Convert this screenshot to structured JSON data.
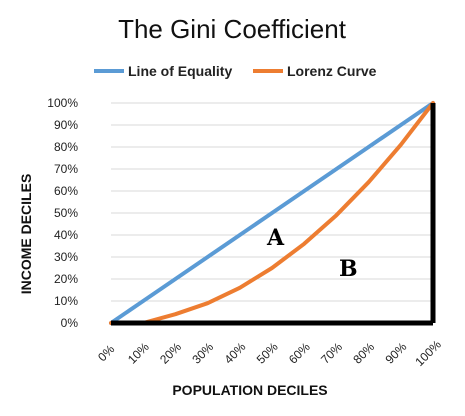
{
  "chart_data": {
    "type": "line",
    "title": "The Gini Coefficient",
    "xlabel": "POPULATION DECILES",
    "ylabel": "INCOME DECILES",
    "categories": [
      "0%",
      "10%",
      "20%",
      "30%",
      "40%",
      "50%",
      "60%",
      "70%",
      "80%",
      "90%",
      "100%"
    ],
    "y_ticks": [
      "0%",
      "10%",
      "20%",
      "30%",
      "40%",
      "50%",
      "60%",
      "70%",
      "80%",
      "90%",
      "100%"
    ],
    "ylim": [
      0,
      100
    ],
    "grid": true,
    "legend_position": "top",
    "series": [
      {
        "name": "Line of Equality",
        "color": "#5b9bd5",
        "values": [
          0,
          10,
          20,
          30,
          40,
          50,
          60,
          70,
          80,
          90,
          100
        ]
      },
      {
        "name": "Lorenz Curve",
        "color": "#ed7d31",
        "values": [
          0,
          0,
          4,
          9,
          16,
          25,
          36,
          49,
          64,
          81,
          100
        ]
      }
    ],
    "annotations": [
      "A",
      "B"
    ]
  }
}
